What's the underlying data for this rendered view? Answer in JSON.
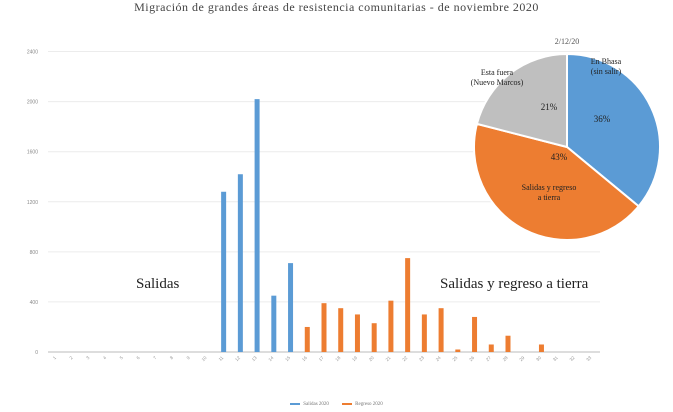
{
  "chart_data": [
    {
      "type": "bar",
      "title": "Migración de grandes áreas de resistencia comunitarias - de noviembre 2020",
      "ylim": [
        0,
        2700
      ],
      "yticks": [
        0,
        400,
        800,
        1200,
        1600,
        2000,
        2400
      ],
      "categories": [
        "1",
        "2",
        "3",
        "4",
        "5",
        "6",
        "7",
        "8",
        "9",
        "10",
        "11",
        "12",
        "13",
        "14",
        "15",
        "16",
        "17",
        "18",
        "19",
        "20",
        "21",
        "22",
        "23",
        "24",
        "25",
        "26",
        "27",
        "28",
        "29",
        "30",
        "31",
        "32",
        "33"
      ],
      "series": [
        {
          "name": "Salidas",
          "color": "#5b9bd5",
          "values": [
            0,
            0,
            0,
            0,
            0,
            0,
            0,
            0,
            0,
            0,
            1280,
            1420,
            2020,
            450,
            710,
            0,
            0,
            0,
            0,
            0,
            0,
            0,
            0,
            0,
            0,
            0,
            0,
            0,
            0,
            0,
            0,
            0,
            0
          ]
        },
        {
          "name": "Regreso",
          "color": "#ed7d31",
          "values": [
            0,
            0,
            0,
            0,
            0,
            0,
            0,
            0,
            0,
            0,
            0,
            0,
            0,
            0,
            0,
            200,
            390,
            350,
            300,
            230,
            410,
            750,
            300,
            350,
            20,
            280,
            60,
            130,
            0,
            60,
            0,
            0,
            0
          ]
        }
      ],
      "annotations": {
        "left": "Salidas",
        "right": "Salidas y regreso a tierra"
      },
      "legend": {
        "position": "bottom",
        "items": [
          "Salidas 2020",
          "Regreso 2020"
        ]
      },
      "grid": true
    },
    {
      "type": "pie",
      "title": "2/12/20",
      "slices": [
        {
          "label": "En Bhasa\n(sin salir)",
          "value": 36,
          "display": "36%",
          "color": "#5b9bd5"
        },
        {
          "label": "Salidas y regreso\na tierra",
          "value": 43,
          "display": "43%",
          "color": "#ed7d31"
        },
        {
          "label": "Esta fuera\n(Nuevo Marcos)",
          "value": 21,
          "display": "21%",
          "color": "#bfbfbf"
        }
      ]
    }
  ]
}
